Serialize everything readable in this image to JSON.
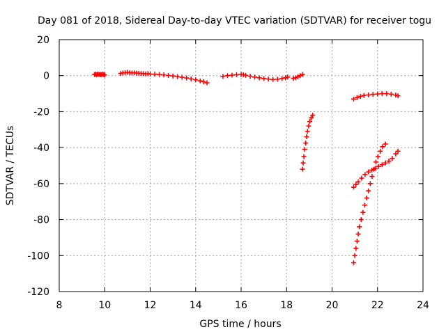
{
  "chart_data": {
    "type": "scatter",
    "title": "Day 081 of 2018, Sidereal Day-to-day VTEC variation (SDTVAR) for receiver togu",
    "xlabel": "GPS time / hours",
    "ylabel": "SDTVAR / TECUs",
    "xlim": [
      8,
      24
    ],
    "ylim": [
      -120,
      20
    ],
    "xticks": [
      8,
      10,
      12,
      14,
      16,
      18,
      20,
      22,
      24
    ],
    "yticks": [
      -120,
      -100,
      -80,
      -60,
      -40,
      -20,
      0,
      20
    ],
    "grid": true,
    "marker": "+",
    "color": "#ff0000",
    "series": [
      {
        "points": [
          [
            9.55,
            0.6
          ],
          [
            9.6,
            0.8
          ],
          [
            9.65,
            0.5
          ],
          [
            9.7,
            0.9
          ],
          [
            9.75,
            0.6
          ],
          [
            9.8,
            0.7
          ],
          [
            9.85,
            0.5
          ],
          [
            9.9,
            0.8
          ],
          [
            9.95,
            0.6
          ],
          [
            10.0,
            0.4
          ],
          [
            10.7,
            1.2
          ],
          [
            10.8,
            1.5
          ],
          [
            10.9,
            1.6
          ],
          [
            11.0,
            1.8
          ],
          [
            11.1,
            1.6
          ],
          [
            11.2,
            1.5
          ],
          [
            11.3,
            1.6
          ],
          [
            11.4,
            1.4
          ],
          [
            11.5,
            1.3
          ],
          [
            11.6,
            1.2
          ],
          [
            11.7,
            1.1
          ],
          [
            11.8,
            1.0
          ],
          [
            11.9,
            1.1
          ],
          [
            12.0,
            0.9
          ],
          [
            12.2,
            0.8
          ],
          [
            12.4,
            0.6
          ],
          [
            12.6,
            0.4
          ],
          [
            12.8,
            0.1
          ],
          [
            13.0,
            -0.2
          ],
          [
            13.2,
            -0.5
          ],
          [
            13.4,
            -0.9
          ],
          [
            13.6,
            -1.3
          ],
          [
            13.8,
            -1.8
          ],
          [
            14.0,
            -2.3
          ],
          [
            14.2,
            -2.9
          ],
          [
            14.35,
            -3.4
          ],
          [
            14.5,
            -4.0
          ],
          [
            15.2,
            -0.4
          ],
          [
            15.4,
            0.0
          ],
          [
            15.6,
            0.3
          ],
          [
            15.8,
            0.5
          ],
          [
            16.0,
            0.6
          ],
          [
            16.1,
            0.5
          ],
          [
            16.2,
            0.2
          ],
          [
            16.4,
            -0.3
          ],
          [
            16.6,
            -0.8
          ],
          [
            16.8,
            -1.2
          ],
          [
            17.0,
            -1.6
          ],
          [
            17.2,
            -1.9
          ],
          [
            17.4,
            -2.1
          ],
          [
            17.6,
            -2.0
          ],
          [
            17.8,
            -1.6
          ],
          [
            17.95,
            -1.2
          ],
          [
            18.05,
            -0.8
          ],
          [
            18.3,
            -1.5
          ],
          [
            18.4,
            -1.2
          ],
          [
            18.5,
            -0.6
          ],
          [
            18.6,
            0.0
          ],
          [
            18.7,
            0.6
          ],
          [
            18.7,
            -52.0
          ],
          [
            18.73,
            -48.5
          ],
          [
            18.76,
            -45.0
          ],
          [
            18.8,
            -41.0
          ],
          [
            18.84,
            -37.5
          ],
          [
            18.88,
            -34.0
          ],
          [
            18.92,
            -31.0
          ],
          [
            18.97,
            -28.0
          ],
          [
            19.02,
            -25.5
          ],
          [
            19.08,
            -23.5
          ],
          [
            19.15,
            -22.0
          ],
          [
            20.95,
            -13.0
          ],
          [
            21.1,
            -12.2
          ],
          [
            21.25,
            -11.5
          ],
          [
            21.4,
            -11.0
          ],
          [
            21.6,
            -10.7
          ],
          [
            21.8,
            -10.4
          ],
          [
            22.0,
            -10.2
          ],
          [
            22.2,
            -10.0
          ],
          [
            22.4,
            -10.0
          ],
          [
            22.6,
            -10.3
          ],
          [
            22.8,
            -10.8
          ],
          [
            22.9,
            -11.2
          ],
          [
            20.95,
            -62.0
          ],
          [
            21.05,
            -60.5
          ],
          [
            21.15,
            -59.0
          ],
          [
            21.3,
            -57.0
          ],
          [
            21.45,
            -55.0
          ],
          [
            21.6,
            -53.5
          ],
          [
            21.75,
            -52.5
          ],
          [
            21.9,
            -51.5
          ],
          [
            22.05,
            -50.5
          ],
          [
            22.2,
            -49.5
          ],
          [
            22.35,
            -48.5
          ],
          [
            22.5,
            -47.5
          ],
          [
            22.65,
            -46.0
          ],
          [
            22.8,
            -43.5
          ],
          [
            22.9,
            -42.0
          ],
          [
            20.95,
            -104.0
          ],
          [
            21.0,
            -100.0
          ],
          [
            21.05,
            -96.0
          ],
          [
            21.1,
            -92.0
          ],
          [
            21.15,
            -88.0
          ],
          [
            21.2,
            -84.0
          ],
          [
            21.28,
            -80.0
          ],
          [
            21.36,
            -76.0
          ],
          [
            21.44,
            -72.0
          ],
          [
            21.52,
            -68.0
          ],
          [
            21.6,
            -64.0
          ],
          [
            21.68,
            -60.0
          ],
          [
            21.76,
            -56.0
          ],
          [
            21.84,
            -52.0
          ],
          [
            21.93,
            -48.0
          ],
          [
            22.02,
            -45.0
          ],
          [
            22.12,
            -42.0
          ],
          [
            22.22,
            -39.5
          ],
          [
            22.35,
            -38.0
          ]
        ]
      }
    ]
  }
}
